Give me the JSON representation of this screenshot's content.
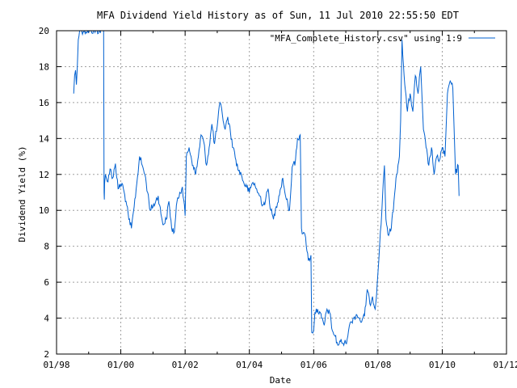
{
  "chart_data": {
    "type": "line",
    "title": "MFA Dividend Yield History as of Sun, 11 Jul 2010 22:55:50 EDT",
    "xlabel": "Date",
    "ylabel": "Dividend Yield (%)",
    "xlim": [
      "1998-01-01",
      "2012-01-01"
    ],
    "ylim": [
      2,
      20
    ],
    "x_ticks": [
      "01/98",
      "01/00",
      "01/02",
      "01/04",
      "01/06",
      "01/08",
      "01/10",
      "01/12"
    ],
    "y_ticks": [
      2,
      4,
      6,
      8,
      10,
      12,
      14,
      16,
      18,
      20
    ],
    "grid": true,
    "legend": "top-right",
    "series": [
      {
        "name": "\"MFA_Complete_History.csv\" using 1:9",
        "color": "#0060d0",
        "x": [
          "1998-07-15",
          "1998-07-25",
          "1998-08-05",
          "1998-08-15",
          "1998-08-25",
          "1998-09-05",
          "1998-09-20",
          "1998-09-30",
          "1999-06-20",
          "1999-06-25",
          "1999-06-28",
          "1999-07-01",
          "1999-07-10",
          "1999-08-01",
          "1999-09-01",
          "1999-10-01",
          "1999-11-01",
          "1999-12-01",
          "2000-01-15",
          "2000-03-01",
          "2000-04-01",
          "2000-05-01",
          "2000-06-01",
          "2000-07-01",
          "2000-08-01",
          "2000-09-01",
          "2000-10-01",
          "2000-11-01",
          "2000-12-01",
          "2001-02-01",
          "2001-03-01",
          "2001-04-01",
          "2001-05-01",
          "2001-06-01",
          "2001-07-01",
          "2001-08-01",
          "2001-09-01",
          "2001-10-01",
          "2001-11-01",
          "2001-12-01",
          "2002-01-01",
          "2002-01-15",
          "2002-02-15",
          "2002-04-01",
          "2002-05-01",
          "2002-06-01",
          "2002-07-01",
          "2002-08-01",
          "2002-09-01",
          "2002-10-01",
          "2002-11-01",
          "2002-12-01",
          "2003-01-01",
          "2003-02-01",
          "2003-03-01",
          "2003-04-01",
          "2003-05-01",
          "2003-06-01",
          "2003-07-01",
          "2003-08-01",
          "2003-09-01",
          "2003-10-01",
          "2003-11-01",
          "2003-12-01",
          "2004-01-01",
          "2004-02-01",
          "2004-03-01",
          "2004-04-01",
          "2004-05-01",
          "2004-06-01",
          "2004-07-01",
          "2004-08-01",
          "2004-09-01",
          "2004-10-01",
          "2004-11-01",
          "2004-12-01",
          "2005-01-15",
          "2005-02-15",
          "2005-03-15",
          "2005-04-01",
          "2005-04-15",
          "2005-05-01",
          "2005-05-15",
          "2005-06-01",
          "2005-07-01",
          "2005-08-01",
          "2005-08-15",
          "2005-09-01",
          "2005-10-01",
          "2005-11-01",
          "2005-12-01",
          "2005-12-10",
          "2006-01-01",
          "2006-01-15",
          "2006-02-15",
          "2006-04-01",
          "2006-05-01",
          "2006-06-01",
          "2006-07-01",
          "2006-08-01",
          "2006-09-01",
          "2006-10-01",
          "2006-11-01",
          "2006-12-01",
          "2007-01-01",
          "2007-02-01",
          "2007-03-01",
          "2007-04-01",
          "2007-05-01",
          "2007-06-01",
          "2007-07-01",
          "2007-08-01",
          "2007-09-01",
          "2007-10-01",
          "2007-11-01",
          "2007-12-01",
          "2008-01-01",
          "2008-01-20",
          "2008-02-15",
          "2008-03-01",
          "2008-03-15",
          "2008-04-01",
          "2008-05-01",
          "2008-06-01",
          "2008-07-01",
          "2008-08-01",
          "2008-09-01",
          "2008-09-15",
          "2008-10-01",
          "2008-11-01",
          "2008-12-01",
          "2009-01-01",
          "2009-02-01",
          "2009-03-01",
          "2009-04-01",
          "2009-05-01",
          "2009-06-01",
          "2009-07-01",
          "2009-08-01",
          "2009-09-01",
          "2009-10-01",
          "2009-11-01",
          "2009-12-01",
          "2010-01-01",
          "2010-02-01",
          "2010-03-01",
          "2010-04-01",
          "2010-05-01",
          "2010-06-01",
          "2010-07-01",
          "2010-07-11"
        ],
        "y": [
          16.5,
          17.5,
          17.8,
          17.0,
          18.0,
          19.5,
          20.0,
          20.0,
          20.0,
          11.0,
          10.6,
          11.5,
          12.0,
          11.6,
          12.3,
          11.8,
          12.6,
          11.2,
          11.5,
          10.5,
          9.5,
          9.0,
          10.2,
          11.5,
          13.0,
          12.5,
          12.0,
          11.0,
          10.0,
          10.5,
          10.8,
          9.8,
          9.2,
          9.5,
          10.5,
          9.0,
          8.8,
          10.5,
          11.0,
          11.3,
          9.7,
          13.0,
          13.5,
          12.5,
          12.0,
          13.0,
          14.2,
          13.8,
          12.5,
          13.5,
          14.8,
          13.7,
          14.7,
          16.0,
          15.3,
          14.5,
          15.2,
          14.3,
          13.5,
          12.8,
          12.2,
          12.0,
          11.5,
          11.3,
          11.0,
          11.5,
          11.5,
          11.0,
          10.8,
          10.3,
          10.5,
          11.2,
          10.0,
          9.5,
          10.2,
          10.8,
          11.8,
          10.8,
          10.3,
          10.0,
          11.0,
          12.4,
          12.6,
          12.5,
          14.0,
          14.2,
          9.0,
          8.7,
          8.5,
          7.2,
          7.5,
          3.2,
          3.3,
          4.3,
          4.5,
          4.0,
          3.6,
          4.5,
          4.3,
          3.3,
          3.0,
          2.5,
          2.7,
          2.6,
          2.6,
          3.3,
          3.8,
          4.0,
          4.2,
          4.0,
          3.8,
          4.1,
          5.6,
          4.8,
          5.2,
          4.5,
          6.5,
          8.0,
          10.0,
          11.5,
          12.5,
          9.5,
          8.6,
          9.0,
          10.5,
          12.0,
          13.0,
          15.0,
          19.5,
          17.0,
          15.5,
          16.5,
          15.5,
          17.5,
          16.5,
          18.0,
          14.5,
          13.5,
          12.5,
          13.5,
          12.0,
          13.0,
          12.8,
          13.5,
          13.0,
          16.5,
          17.2,
          16.8,
          12.0,
          12.5,
          10.8
        ]
      }
    ]
  }
}
